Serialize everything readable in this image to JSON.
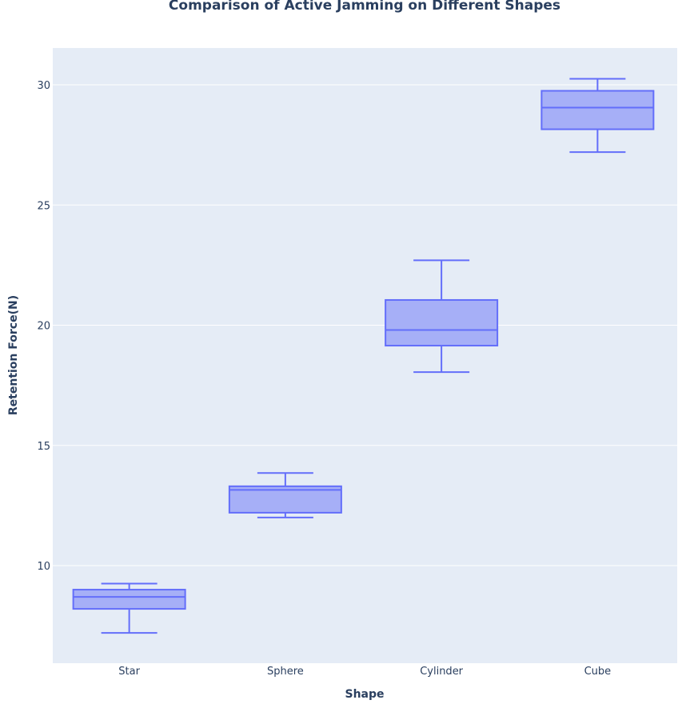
{
  "chart_data": {
    "type": "box",
    "title": "Comparison of Active Jamming on Different Shapes",
    "xlabel": "Shape",
    "ylabel": "Retention Force(N)",
    "categories": [
      "Star",
      "Sphere",
      "Cylinder",
      "Cube"
    ],
    "ylim": [
      6,
      31.5
    ],
    "yticks": [
      10,
      15,
      20,
      25,
      30
    ],
    "grid": true,
    "colors": {
      "plot_bg": "#E5ECF6",
      "box_fill": "#A6AFF7",
      "box_line": "#636EFA",
      "grid": "#ffffff",
      "text": "#2a3f5f"
    },
    "series": [
      {
        "name": "Star",
        "min": 7.2,
        "q1": 8.2,
        "median": 8.7,
        "q3": 9.0,
        "max": 9.25
      },
      {
        "name": "Sphere",
        "min": 12.0,
        "q1": 12.2,
        "median": 13.15,
        "q3": 13.3,
        "max": 13.85
      },
      {
        "name": "Cylinder",
        "min": 18.05,
        "q1": 19.15,
        "median": 19.8,
        "q3": 21.05,
        "max": 22.7
      },
      {
        "name": "Cube",
        "min": 27.2,
        "q1": 28.15,
        "median": 29.05,
        "q3": 29.75,
        "max": 30.25
      }
    ]
  }
}
